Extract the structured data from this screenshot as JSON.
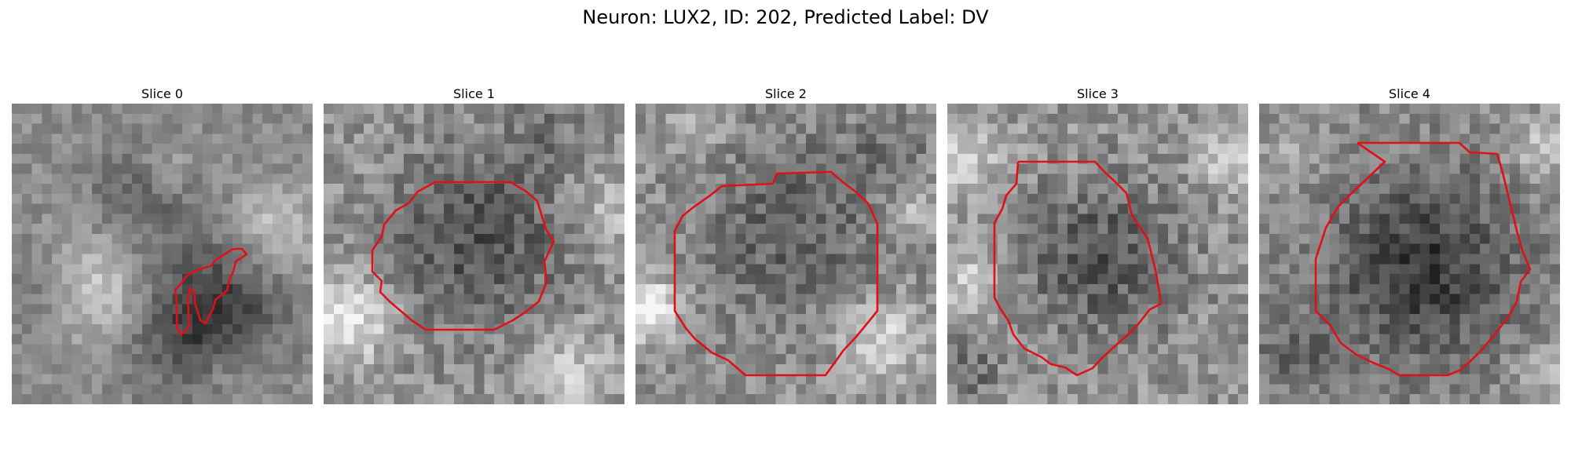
{
  "title": "Neuron: LUX2, ID: 202, Predicted Label: DV",
  "slices": [
    {
      "label": "Slice 0"
    },
    {
      "label": "Slice 1"
    },
    {
      "label": "Slice 2"
    },
    {
      "label": "Slice 3"
    },
    {
      "label": "Slice 4"
    }
  ],
  "colors": {
    "contour": "#e0101a",
    "background": "#ffffff"
  }
}
